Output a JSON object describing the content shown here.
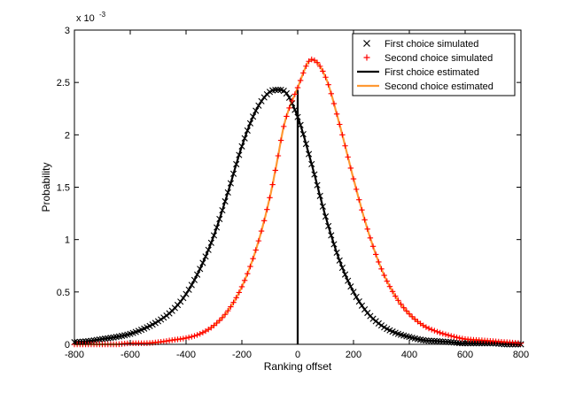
{
  "chart_data": {
    "type": "line",
    "title": "",
    "xlabel": "Ranking offset",
    "ylabel": "Probability",
    "y_exponent_label": "x 10",
    "y_exponent_power": "-3",
    "xlim": [
      -800,
      800
    ],
    "ylim": [
      0,
      3
    ],
    "x_ticks": [
      -800,
      -600,
      -400,
      -200,
      0,
      200,
      400,
      600,
      800
    ],
    "x_tick_labels": [
      "-800",
      "-600",
      "-400",
      "-200",
      "0",
      "200",
      "400",
      "600",
      "800"
    ],
    "y_ticks": [
      0,
      0.5,
      1,
      1.5,
      2,
      2.5,
      3
    ],
    "y_tick_labels": [
      "0",
      "0.5",
      "1",
      "1.5",
      "2",
      "2.5",
      "3"
    ],
    "grid": false,
    "legend_position": "top-right",
    "x": [
      -800,
      -750,
      -700,
      -650,
      -600,
      -550,
      -500,
      -450,
      -400,
      -350,
      -300,
      -250,
      -200,
      -150,
      -100,
      -70,
      -50,
      0,
      50,
      100,
      150,
      200,
      250,
      300,
      350,
      400,
      450,
      500,
      550,
      600,
      650,
      700,
      750,
      800
    ],
    "series": [
      {
        "name": "First choice estimated",
        "style": "line",
        "color": "#000000",
        "values": [
          0.02,
          0.03,
          0.05,
          0.07,
          0.1,
          0.15,
          0.22,
          0.32,
          0.48,
          0.72,
          1.04,
          1.45,
          1.89,
          2.23,
          2.41,
          2.43,
          2.42,
          2.17,
          1.72,
          1.22,
          0.8,
          0.5,
          0.3,
          0.18,
          0.11,
          0.07,
          0.04,
          0.03,
          0.02,
          0.01,
          0.01,
          0.01,
          0.0,
          0.0
        ]
      },
      {
        "name": "First choice simulated",
        "style": "marker-x",
        "color": "#000000",
        "values": [
          0.02,
          0.03,
          0.05,
          0.07,
          0.1,
          0.15,
          0.22,
          0.32,
          0.48,
          0.72,
          1.04,
          1.45,
          1.89,
          2.23,
          2.41,
          2.43,
          2.42,
          2.17,
          1.72,
          1.22,
          0.8,
          0.5,
          0.3,
          0.18,
          0.11,
          0.07,
          0.04,
          0.03,
          0.02,
          0.01,
          0.01,
          0.01,
          0.0,
          0.0
        ]
      },
      {
        "name": "Second choice estimated",
        "style": "line",
        "color": "#ff9933",
        "values": [
          0.0,
          0.0,
          0.0,
          0.0,
          0.01,
          0.01,
          0.02,
          0.04,
          0.06,
          0.1,
          0.18,
          0.32,
          0.55,
          0.9,
          1.4,
          1.8,
          2.08,
          2.45,
          2.72,
          2.55,
          2.1,
          1.58,
          1.1,
          0.72,
          0.46,
          0.29,
          0.18,
          0.12,
          0.08,
          0.05,
          0.04,
          0.03,
          0.02,
          0.01
        ]
      },
      {
        "name": "Second choice simulated",
        "style": "marker-plus",
        "color": "#ff0000",
        "values": [
          0.0,
          0.0,
          0.0,
          0.0,
          0.01,
          0.01,
          0.02,
          0.04,
          0.06,
          0.1,
          0.18,
          0.32,
          0.55,
          0.9,
          1.4,
          1.8,
          2.08,
          2.45,
          2.72,
          2.55,
          2.1,
          1.58,
          1.1,
          0.72,
          0.46,
          0.29,
          0.18,
          0.12,
          0.08,
          0.05,
          0.04,
          0.03,
          0.02,
          0.01
        ]
      }
    ],
    "annotations": [
      {
        "type": "vertical-line",
        "x": 0,
        "y_from": 0,
        "y_to": 2.43,
        "color": "#000000"
      }
    ],
    "legend": [
      {
        "label": "First choice simulated",
        "series": 1
      },
      {
        "label": "Second choice simulated",
        "series": 3
      },
      {
        "label": "First choice estimated",
        "series": 0
      },
      {
        "label": "Second choice estimated",
        "series": 2
      }
    ]
  }
}
